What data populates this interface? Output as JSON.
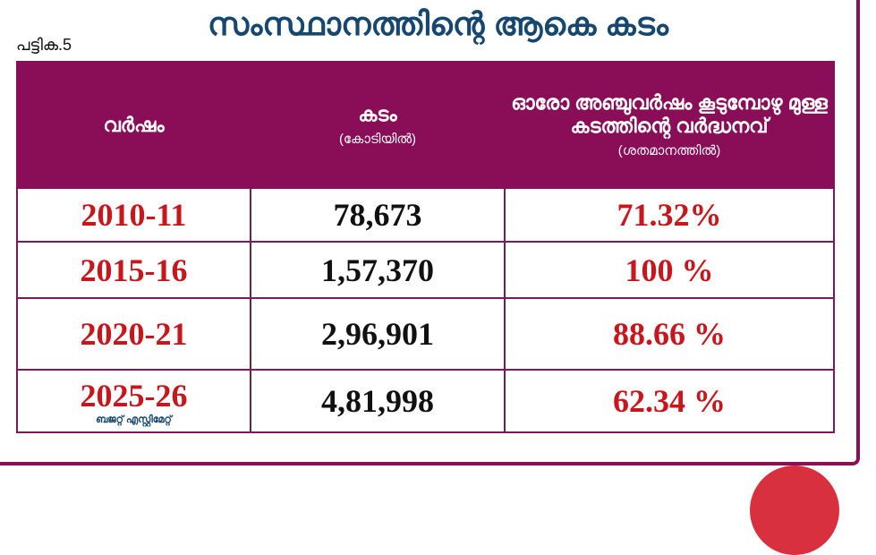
{
  "title": "സംസ്ഥാനത്തിന്റെ ആകെ കടം",
  "table_label": "പട്ടിക.5",
  "headers": {
    "year": "വർഷം",
    "debt": "കടം",
    "debt_unit": "(കോടിയിൽ)",
    "growth": "ഓരോ അഞ്ചുവർഷം കൂടുമ്പോഴു മുള്ള കടത്തിന്റെ വർദ്ധനവ്",
    "growth_unit": "(ശതമാനത്തിൽ)"
  },
  "rows": [
    {
      "year": "2010-11",
      "debt": "78,673",
      "growth": "71.32%"
    },
    {
      "year": "2015-16",
      "debt": "1,57,370",
      "growth": "100 %"
    },
    {
      "year": "2020-21",
      "debt": "2,96,901",
      "growth": "88.66 %"
    },
    {
      "year": "2025-26",
      "note": "ബജറ്റ് എസ്റ്റിമേറ്റ്",
      "debt": "4,81,998",
      "growth": "62.34 %"
    }
  ],
  "colors": {
    "header_bg": "#8a0d57",
    "accent_red": "#c8161d",
    "title_blue": "#16476e"
  }
}
